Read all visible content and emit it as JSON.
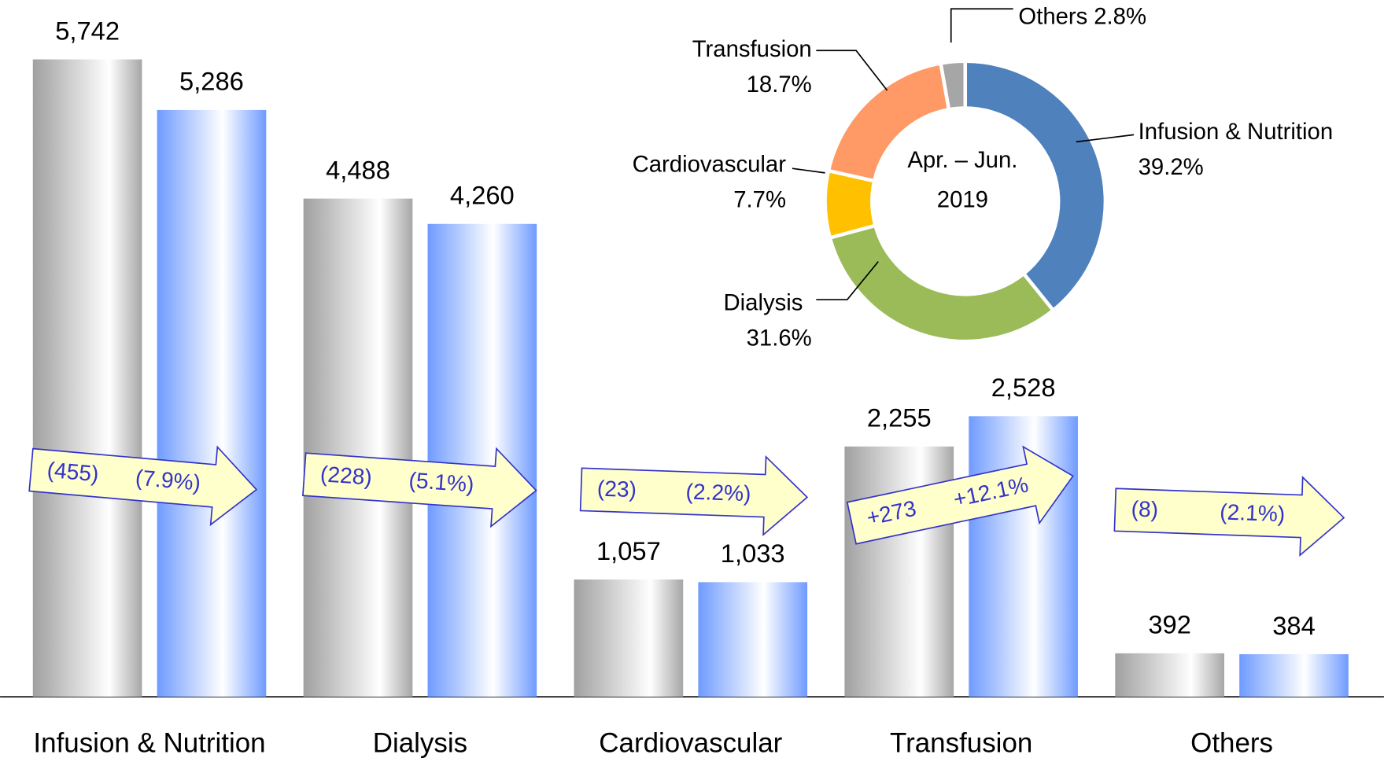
{
  "chart_data": [
    {
      "type": "bar",
      "categories": [
        "Infusion & Nutrition",
        "Dialysis",
        "Cardiovascular",
        "Transfusion",
        "Others"
      ],
      "series": [
        {
          "color": "#a6a6a6",
          "values": [
            5742,
            4488,
            1057,
            2255,
            392
          ],
          "value_labels": [
            "5,742",
            "4,488",
            "1,057",
            "2,255",
            "392"
          ]
        },
        {
          "color": "#6f9bff",
          "values": [
            5286,
            4260,
            1033,
            2528,
            384
          ],
          "value_labels": [
            "5,286",
            "4,260",
            "1,033",
            "2,528",
            "384"
          ]
        }
      ],
      "changes": [
        [
          "(455)",
          "(7.9%)"
        ],
        [
          "(228)",
          "(5.1%)"
        ],
        [
          "(23)",
          "(2.2%)"
        ],
        [
          "+273",
          "+12.1%"
        ],
        [
          "(8)",
          "(2.1%)"
        ]
      ]
    },
    {
      "type": "donut",
      "center_label": [
        "Apr. – Jun.",
        "2019"
      ],
      "categories": [
        "Infusion & Nutrition",
        "Dialysis",
        "Cardiovascular",
        "Transfusion",
        "Others"
      ],
      "values": [
        39.2,
        31.6,
        7.7,
        18.7,
        2.8
      ],
      "value_labels": [
        "39.2%",
        "31.6%",
        "7.7%",
        "18.7%",
        "2.8%"
      ],
      "colors": [
        "#4f81bd",
        "#9bbb59",
        "#ffc000",
        "#ff9966",
        "#a6a6a6"
      ]
    }
  ]
}
